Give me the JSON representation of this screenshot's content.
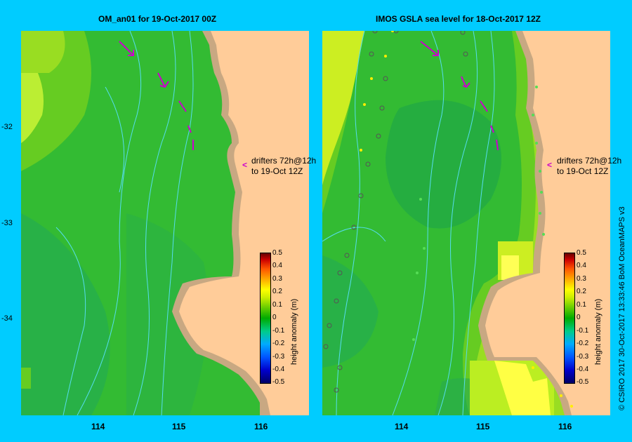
{
  "left_panel": {
    "title": "OM_an01  for 19-Oct-2017 00Z"
  },
  "right_panel": {
    "title": "IMOS  GSLA sea level   for 18-Oct-2017 12Z"
  },
  "drifters": {
    "line1": "drifters 72h@12h",
    "line2": "to 19-Oct 12Z"
  },
  "y_ticks": [
    "-32",
    "-33",
    "-34"
  ],
  "x_ticks": [
    "114",
    "115",
    "116"
  ],
  "colorbar": {
    "title": "height anomaly  (m)",
    "ticks": [
      "0.5",
      "0.4",
      "0.3",
      "0.2",
      "0.1",
      "0",
      "-0.1",
      "-0.2",
      "-0.3",
      "-0.4",
      "-0.5"
    ]
  },
  "credit": "© CSIRO 2017   30-Oct-2017 13:33:46 BoM OceanMAPS v3",
  "colors": {
    "background": "#00ccff",
    "land": "#ffcc99",
    "shelf": "#c8a882",
    "drifter": "#cc00cc"
  }
}
